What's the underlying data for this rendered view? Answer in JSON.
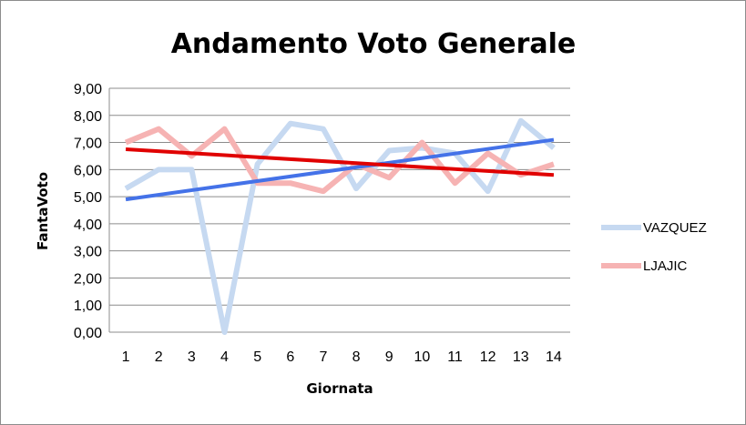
{
  "chart_data": {
    "type": "line",
    "title": "Andamento Voto Generale",
    "xlabel": "Giornata",
    "ylabel": "FantaVoto",
    "categories": [
      "1",
      "2",
      "3",
      "4",
      "5",
      "6",
      "7",
      "8",
      "9",
      "10",
      "11",
      "12",
      "13",
      "14"
    ],
    "ylim": [
      0,
      9
    ],
    "yticks": [
      "0,00",
      "1,00",
      "2,00",
      "3,00",
      "4,00",
      "5,00",
      "6,00",
      "7,00",
      "8,00",
      "9,00"
    ],
    "grid": "horizontal",
    "legend_position": "right",
    "series": [
      {
        "name": "VAZQUEZ",
        "color": "#c6d9f1",
        "values": [
          5.3,
          6.0,
          6.0,
          0.0,
          6.2,
          7.7,
          7.5,
          5.3,
          6.7,
          6.8,
          6.6,
          5.2,
          7.8,
          6.8
        ]
      },
      {
        "name": "LJAJIC",
        "color": "#f6b3b3",
        "values": [
          7.0,
          7.5,
          6.5,
          7.5,
          5.5,
          5.5,
          5.2,
          6.2,
          5.7,
          7.0,
          5.5,
          6.6,
          5.8,
          6.2
        ]
      }
    ],
    "trendlines": [
      {
        "series": "VAZQUEZ",
        "color": "#4472e8",
        "start": 4.9,
        "end": 7.1
      },
      {
        "series": "LJAJIC",
        "color": "#e00000",
        "start": 6.75,
        "end": 5.8
      }
    ]
  }
}
